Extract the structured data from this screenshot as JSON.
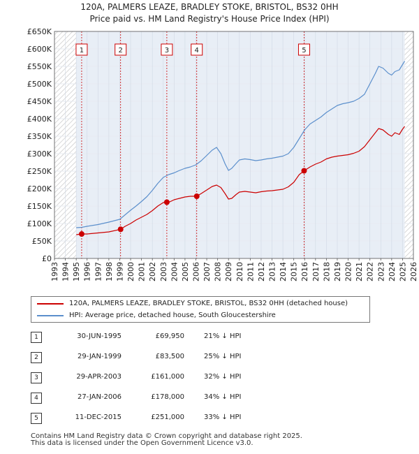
{
  "title": "120A, PALMERS LEAZE, BRADLEY STOKE, BRISTOL, BS32 0HH",
  "subtitle": "Price paid vs. HM Land Registry's House Price Index (HPI)",
  "chart_data": {
    "type": "line",
    "xlim": [
      1993,
      2026
    ],
    "ylim": [
      0,
      650000
    ],
    "x_ticks": [
      1993,
      1994,
      1995,
      1996,
      1997,
      1998,
      1999,
      2000,
      2001,
      2002,
      2003,
      2004,
      2005,
      2006,
      2007,
      2008,
      2009,
      2010,
      2011,
      2012,
      2013,
      2014,
      2015,
      2016,
      2017,
      2018,
      2019,
      2020,
      2021,
      2022,
      2023,
      2024,
      2025,
      2026
    ],
    "y_ticks": [
      {
        "value": 0,
        "label": "£0"
      },
      {
        "value": 50000,
        "label": "£50K"
      },
      {
        "value": 100000,
        "label": "£100K"
      },
      {
        "value": 150000,
        "label": "£150K"
      },
      {
        "value": 200000,
        "label": "£200K"
      },
      {
        "value": 250000,
        "label": "£250K"
      },
      {
        "value": 300000,
        "label": "£300K"
      },
      {
        "value": 350000,
        "label": "£350K"
      },
      {
        "value": 400000,
        "label": "£400K"
      },
      {
        "value": 450000,
        "label": "£450K"
      },
      {
        "value": 500000,
        "label": "£500K"
      },
      {
        "value": 550000,
        "label": "£550K"
      },
      {
        "value": 600000,
        "label": "£600K"
      },
      {
        "value": 650000,
        "label": "£650K"
      }
    ],
    "data_range": [
      1995.0,
      2025.2
    ],
    "series": [
      {
        "name": "120A, PALMERS LEAZE, BRADLEY STOKE, BRISTOL, BS32 0HH (detached house)",
        "color": "#cc0000",
        "x": [
          1995.0,
          1995.5,
          1996.0,
          1997.0,
          1998.0,
          1999.08,
          1999.5,
          2000.0,
          2000.5,
          2001.0,
          2001.5,
          2002.0,
          2002.5,
          2003.0,
          2003.33,
          2003.6,
          2004.0,
          2004.5,
          2005.0,
          2005.5,
          2006.08,
          2006.5,
          2007.0,
          2007.5,
          2007.9,
          2008.3,
          2008.7,
          2009.0,
          2009.3,
          2009.7,
          2010.0,
          2010.5,
          2011.0,
          2011.5,
          2012.0,
          2012.5,
          2013.0,
          2013.5,
          2014.0,
          2014.5,
          2015.0,
          2015.5,
          2015.95,
          2016.5,
          2017.0,
          2017.5,
          2018.0,
          2018.5,
          2019.0,
          2019.5,
          2020.0,
          2020.5,
          2021.0,
          2021.5,
          2022.0,
          2022.5,
          2022.8,
          2023.2,
          2023.7,
          2024.0,
          2024.3,
          2024.7,
          2025.0,
          2025.2
        ],
        "y": [
          68000,
          69950,
          70000,
          73000,
          76000,
          83500,
          92000,
          100000,
          110000,
          118000,
          126000,
          137000,
          150000,
          160000,
          161000,
          162000,
          168000,
          172000,
          176000,
          178000,
          178000,
          186000,
          196000,
          206000,
          210000,
          203000,
          185000,
          170000,
          172000,
          183000,
          190000,
          192000,
          190000,
          188000,
          191000,
          193000,
          194000,
          196000,
          198000,
          205000,
          218000,
          240000,
          251000,
          262000,
          270000,
          276000,
          285000,
          290000,
          293000,
          295000,
          297000,
          301000,
          307000,
          320000,
          340000,
          360000,
          372000,
          368000,
          355000,
          350000,
          360000,
          355000,
          370000,
          378000
        ]
      },
      {
        "name": "HPI: Average price, detached house, South Gloucestershire",
        "color": "#5b8fcc",
        "x": [
          1995.0,
          1995.5,
          1996.0,
          1997.0,
          1998.0,
          1999.0,
          1999.5,
          2000.0,
          2000.5,
          2001.0,
          2001.5,
          2002.0,
          2002.5,
          2003.0,
          2003.5,
          2004.0,
          2004.5,
          2005.0,
          2005.5,
          2006.0,
          2006.5,
          2007.0,
          2007.5,
          2007.9,
          2008.3,
          2008.7,
          2009.0,
          2009.3,
          2009.7,
          2010.0,
          2010.5,
          2011.0,
          2011.5,
          2012.0,
          2012.5,
          2013.0,
          2013.5,
          2014.0,
          2014.5,
          2015.0,
          2015.5,
          2016.0,
          2016.5,
          2017.0,
          2017.5,
          2018.0,
          2018.5,
          2019.0,
          2019.5,
          2020.0,
          2020.5,
          2021.0,
          2021.5,
          2022.0,
          2022.5,
          2022.8,
          2023.2,
          2023.7,
          2024.0,
          2024.3,
          2024.7,
          2025.0,
          2025.2
        ],
        "y": [
          88000,
          89000,
          92000,
          97000,
          104000,
          112000,
          125000,
          138000,
          150000,
          163000,
          177000,
          195000,
          215000,
          232000,
          240000,
          245000,
          252000,
          258000,
          262000,
          268000,
          280000,
          295000,
          310000,
          318000,
          300000,
          270000,
          252000,
          258000,
          272000,
          282000,
          285000,
          283000,
          280000,
          282000,
          285000,
          287000,
          290000,
          293000,
          300000,
          318000,
          343000,
          368000,
          385000,
          395000,
          405000,
          418000,
          428000,
          438000,
          443000,
          446000,
          450000,
          458000,
          470000,
          500000,
          530000,
          550000,
          545000,
          530000,
          525000,
          535000,
          540000,
          555000,
          565000
        ]
      }
    ],
    "sales": [
      {
        "label": "1",
        "x": 1995.5,
        "price": 69950
      },
      {
        "label": "2",
        "x": 1999.08,
        "price": 83500
      },
      {
        "label": "3",
        "x": 2003.33,
        "price": 161000
      },
      {
        "label": "4",
        "x": 2006.08,
        "price": 178000
      },
      {
        "label": "5",
        "x": 2015.95,
        "price": 251000
      }
    ]
  },
  "legend": [
    {
      "label": "120A, PALMERS LEAZE, BRADLEY STOKE, BRISTOL, BS32 0HH (detached house)",
      "color": "#cc0000"
    },
    {
      "label": "HPI: Average price, detached house, South Gloucestershire",
      "color": "#5b8fcc"
    }
  ],
  "sales_table": [
    {
      "num": "1",
      "date": "30-JUN-1995",
      "price": "£69,950",
      "hpi": "21% ↓ HPI"
    },
    {
      "num": "2",
      "date": "29-JAN-1999",
      "price": "£83,500",
      "hpi": "25% ↓ HPI"
    },
    {
      "num": "3",
      "date": "29-APR-2003",
      "price": "£161,000",
      "hpi": "32% ↓ HPI"
    },
    {
      "num": "4",
      "date": "27-JAN-2006",
      "price": "£178,000",
      "hpi": "34% ↓ HPI"
    },
    {
      "num": "5",
      "date": "11-DEC-2015",
      "price": "£251,000",
      "hpi": "33% ↓ HPI"
    }
  ],
  "footer": {
    "line1": "Contains HM Land Registry data © Crown copyright and database right 2025.",
    "line2": "This data is licensed under the Open Government Licence v3.0."
  }
}
